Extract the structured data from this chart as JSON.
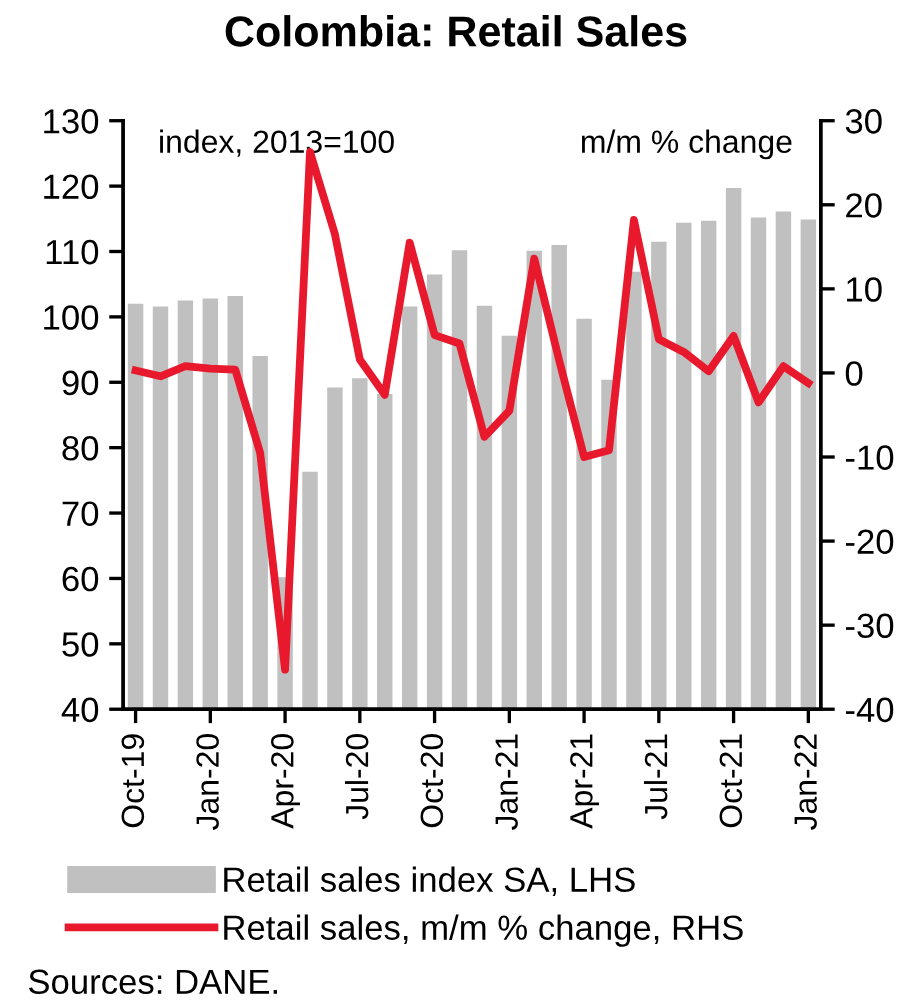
{
  "chart_data": {
    "type": "bar",
    "title": "Colombia: Retail Sales",
    "ylabel": "index, 2013=100",
    "y2label": "m/m % change",
    "categories": [
      "Oct-19",
      null,
      null,
      "Jan-20",
      null,
      null,
      "Apr-20",
      null,
      null,
      "Jul-20",
      null,
      null,
      "Oct-20",
      null,
      null,
      "Jan-21",
      null,
      null,
      "Apr-21",
      null,
      null,
      "Jul-21",
      null,
      null,
      "Oct-21",
      null,
      null,
      "Jan-22"
    ],
    "series": [
      {
        "name": "Retail sales index SA, LHS",
        "color": "#c0c0c0",
        "values": [
          102,
          101.6,
          102.5,
          102.8,
          103.2,
          94,
          60.2,
          76.3,
          89.2,
          90.6,
          88.2,
          101.6,
          106.5,
          110.2,
          101.7,
          97.1,
          110.1,
          111,
          99.7,
          90.4,
          106.9,
          111.5,
          114.4,
          114.7,
          119.7,
          115.2,
          116.1,
          114.9
        ]
      },
      {
        "name": "Retail sales, m/m % change, RHS",
        "type": "line",
        "axis": "y2",
        "color": "#e8192c",
        "values": [
          0.3,
          -0.4,
          0.8,
          0.5,
          0.4,
          -9.5,
          -35.3,
          26.3,
          16.5,
          1.6,
          -2.6,
          15.5,
          4.5,
          3.5,
          -7.6,
          -4.5,
          13.6,
          1.5,
          -10,
          -9.2,
          18.2,
          4,
          2.5,
          0.2,
          4.4,
          -3.5,
          0.8,
          -1.2
        ]
      }
    ],
    "ylim": [
      40,
      130
    ],
    "yticks": [
      40,
      50,
      60,
      70,
      80,
      90,
      100,
      110,
      120,
      130
    ],
    "y2lim": [
      -40,
      30
    ],
    "y2ticks": [
      -40,
      -30,
      -20,
      -10,
      0,
      10,
      20,
      30
    ],
    "grid": false,
    "legend": "bottom",
    "marker": "none",
    "line_style": "solid",
    "annotations": [
      "Sources: DANE."
    ]
  }
}
